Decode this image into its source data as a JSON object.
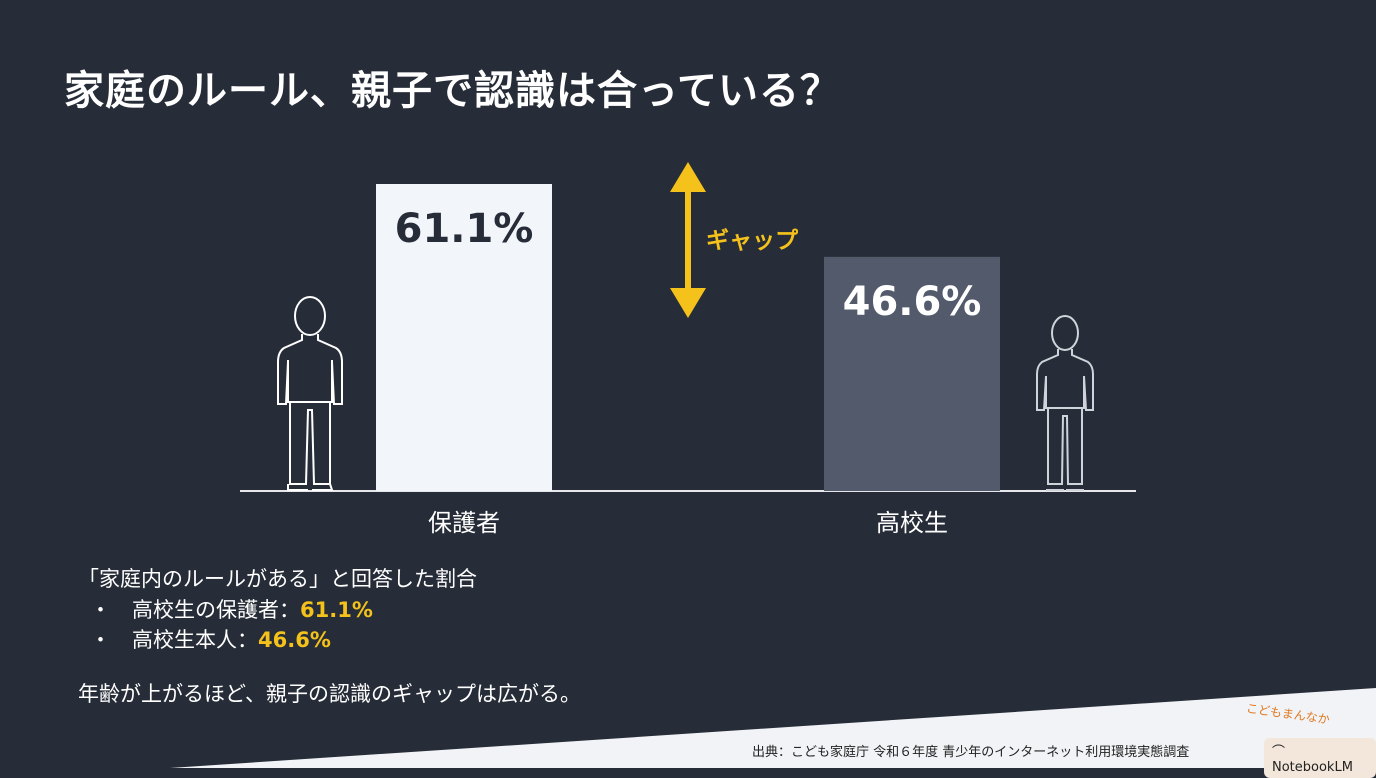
{
  "title": "家庭のルール、親子で認識は合っている？",
  "chart_data": {
    "type": "bar",
    "categories": [
      "保護者",
      "高校生"
    ],
    "values": [
      61.1,
      46.6
    ],
    "value_labels": [
      "61.1%",
      "46.6%"
    ],
    "colors": [
      "#f2f5f9",
      "#525a6b"
    ],
    "label_colors": [
      "#272d38",
      "#ffffff"
    ],
    "annotation": "ギャップ",
    "annotation_color": "#f5c21b",
    "ylim": [
      0,
      65
    ]
  },
  "subtitle": "「家庭内のルールがある」と回答した割合",
  "bullets": [
    {
      "label": "・　高校生の保護者：",
      "value": "61.1%"
    },
    {
      "label": "・　高校生本人：",
      "value": "46.6%"
    }
  ],
  "conclusion": "年齢が上がるほど、親子の認識のギャップは広がる。",
  "source": "出典：こども家庭庁 令和６年度 青少年のインターネット利用環境実態調査",
  "logo": "こどもまんなか",
  "badge": "NotebookLM"
}
